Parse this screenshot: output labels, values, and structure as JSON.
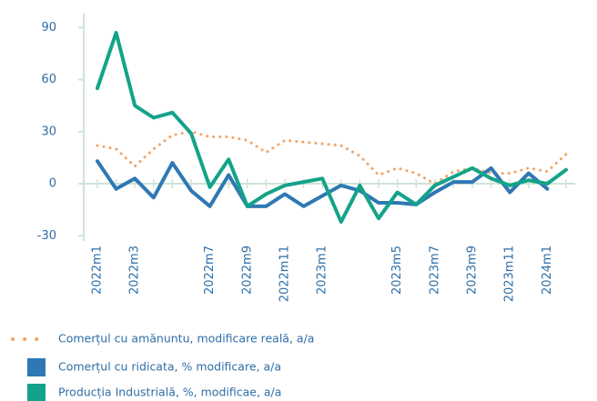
{
  "chart_data": {
    "type": "line",
    "categories": [
      "2022m1",
      null,
      "2022m3",
      null,
      null,
      null,
      "2022m7",
      null,
      "2022m9",
      null,
      "2022m11",
      null,
      "2023m1",
      null,
      null,
      null,
      "2023m5",
      null,
      "2023m7",
      null,
      "2023m9",
      null,
      "2023m11",
      null,
      "2024m1",
      null
    ],
    "series": [
      {
        "name": "Comerțul cu amănuntu, modificare reală, a/a",
        "color": "#f0a466",
        "style": "dotted",
        "values": [
          22,
          20,
          10,
          20,
          28,
          30,
          27,
          27,
          25,
          18,
          25,
          24,
          23,
          22,
          16,
          5,
          9,
          6,
          0,
          7,
          9,
          6,
          6,
          9,
          7,
          17
        ]
      },
      {
        "name": "Comerțul cu ridicata, % modificare, a/a",
        "color": "#2f78b4",
        "style": "solid",
        "values": [
          13,
          -3,
          3,
          -8,
          12,
          -4,
          -13,
          5,
          -13,
          -13,
          -6,
          -13,
          -7,
          -1,
          -4,
          -11,
          -11,
          -12,
          -5,
          1,
          1,
          9,
          -5,
          6,
          -3,
          null
        ]
      },
      {
        "name": "Producția Industrială, %, modificae, a/a",
        "color": "#13a38a",
        "style": "solid",
        "values": [
          55,
          87,
          45,
          38,
          41,
          29,
          -2,
          14,
          -13,
          -6,
          -1,
          1,
          3,
          -22,
          -1,
          -20,
          -5,
          -12,
          -1,
          4,
          9,
          3,
          -1,
          2,
          0,
          8
        ]
      }
    ],
    "ylim": [
      -33,
      98
    ],
    "yticks": [
      -30,
      0,
      30,
      60,
      90
    ]
  }
}
